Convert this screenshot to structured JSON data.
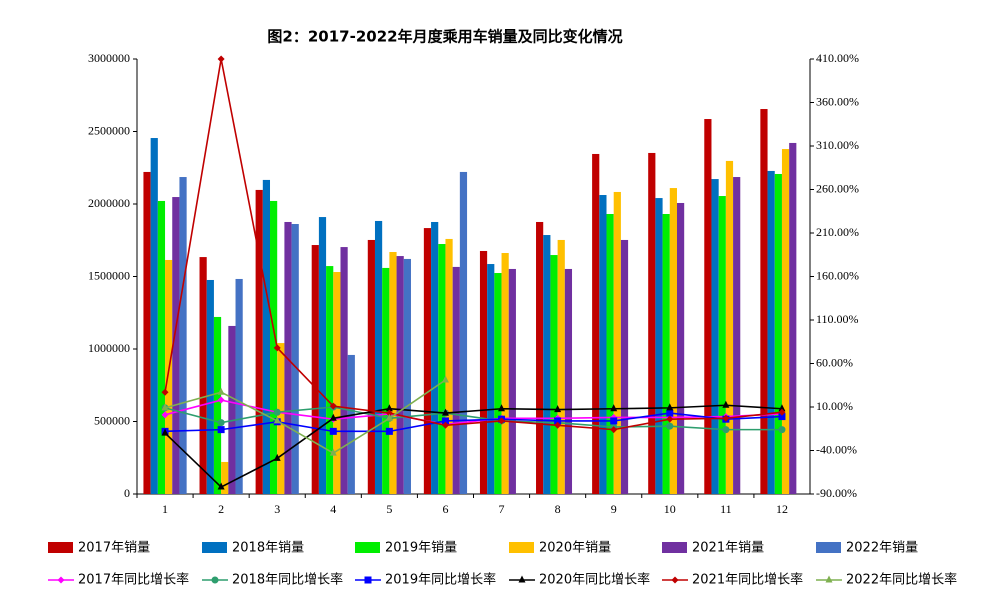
{
  "chart_data": {
    "type": "bar",
    "title": "图2：2017-2022年月度乘用车销量及同比变化情况",
    "categories": [
      "1",
      "2",
      "3",
      "4",
      "5",
      "6",
      "7",
      "8",
      "9",
      "10",
      "11",
      "12"
    ],
    "ylim": [
      0,
      3000000
    ],
    "yticks": [
      0,
      500000,
      1000000,
      1500000,
      2000000,
      2500000,
      3000000
    ],
    "y2lim": [
      -90,
      410
    ],
    "y2ticks": [
      {
        "value": -90,
        "label": "-90.00%"
      },
      {
        "value": -40,
        "label": "-40.00%"
      },
      {
        "value": 10,
        "label": "10.00%"
      },
      {
        "value": 60,
        "label": "60.00%"
      },
      {
        "value": 110,
        "label": "110.00%"
      },
      {
        "value": 160,
        "label": "160.00%"
      },
      {
        "value": 210,
        "label": "210.00%"
      },
      {
        "value": 260,
        "label": "260.00%"
      },
      {
        "value": 310,
        "label": "310.00%"
      },
      {
        "value": 360,
        "label": "360.00%"
      },
      {
        "value": 410,
        "label": "410.00%"
      }
    ],
    "series": [
      {
        "name": "2017年销量",
        "type": "bar",
        "color": "#c00000",
        "values": [
          2221000,
          1634000,
          2097000,
          1717000,
          1752000,
          1834000,
          1676000,
          1876000,
          2345000,
          2352000,
          2586000,
          2655000
        ]
      },
      {
        "name": "2018年销量",
        "type": "bar",
        "color": "#0070c0",
        "values": [
          2455000,
          1476000,
          2166000,
          1910000,
          1883000,
          1876000,
          1586000,
          1786000,
          2062000,
          2041000,
          2172000,
          2228000
        ]
      },
      {
        "name": "2019年销量",
        "type": "bar",
        "color": "#00ee00",
        "values": [
          2021000,
          1221000,
          2021000,
          1572000,
          1559000,
          1724000,
          1524000,
          1648000,
          1931000,
          1931000,
          2055000,
          2207000
        ]
      },
      {
        "name": "2020年销量",
        "type": "bar",
        "color": "#ffc000",
        "values": [
          1614000,
          221000,
          1041000,
          1531000,
          1669000,
          1759000,
          1662000,
          1752000,
          2083000,
          2110000,
          2297000,
          2379000
        ]
      },
      {
        "name": "2021年销量",
        "type": "bar",
        "color": "#7030a0",
        "values": [
          2048000,
          1159000,
          1876000,
          1703000,
          1641000,
          1566000,
          1552000,
          1552000,
          1752000,
          2007000,
          2186000,
          2421000
        ]
      },
      {
        "name": "2022年销量",
        "type": "bar",
        "color": "#4472c4",
        "values": [
          2186000,
          1483000,
          1862000,
          959000,
          1621000,
          2221000,
          null,
          null,
          null,
          null,
          null,
          null
        ]
      },
      {
        "name": "2017年同比增长率",
        "type": "line",
        "axis": "y2",
        "marker": "diamond",
        "color": "#ff00ff",
        "values": [
          1,
          18,
          4,
          -4,
          2,
          -10,
          -3,
          -3,
          -2,
          -2,
          -1,
          2
        ]
      },
      {
        "name": "2018年同比增长率",
        "type": "line",
        "axis": "y2",
        "marker": "circle",
        "color": "#2e9e6e",
        "values": [
          9,
          -8,
          4,
          10,
          -3,
          3,
          -6,
          -8,
          -13,
          -12,
          -16,
          -16
        ]
      },
      {
        "name": "2019年同比增长率",
        "type": "line",
        "axis": "y2",
        "marker": "square",
        "color": "#0000ff",
        "values": [
          -18,
          -16,
          -7,
          -18,
          -18,
          -6,
          -4,
          -6,
          -6,
          3,
          -4,
          -1
        ]
      },
      {
        "name": "2020年同比增长率",
        "type": "line",
        "axis": "y2",
        "marker": "triangle",
        "color": "#000000",
        "values": [
          -20,
          -82,
          -49,
          -3,
          8,
          3,
          8,
          7,
          8,
          9,
          12,
          8
        ]
      },
      {
        "name": "2021年同比增长率",
        "type": "line",
        "axis": "y2",
        "marker": "diamond",
        "color": "#c00000",
        "values": [
          27,
          410,
          78,
          11,
          3,
          -11,
          -6,
          -11,
          -16,
          -4,
          -3,
          4
        ]
      },
      {
        "name": "2022年同比增长率",
        "type": "line",
        "axis": "y2",
        "marker": "triangle",
        "color": "#7fb050",
        "values": [
          9,
          27,
          -6,
          -43,
          -3,
          41,
          null,
          null,
          null,
          null,
          null,
          null
        ]
      }
    ]
  }
}
